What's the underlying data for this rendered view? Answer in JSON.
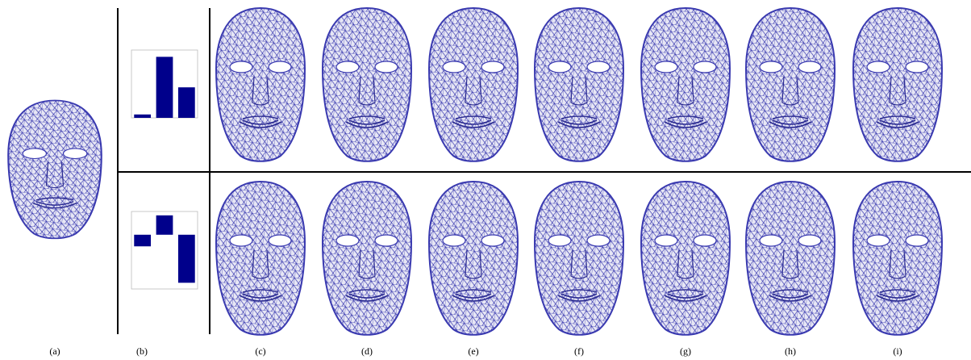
{
  "labels": [
    "(a)",
    "(b)",
    "(c)",
    "(d)",
    "(e)",
    "(f)",
    "(g)",
    "(h)",
    "(i)"
  ],
  "bar_plots": [
    {
      "values": [
        0.05,
        0.9,
        0.45
      ],
      "ylim": [
        0,
        1
      ],
      "color": "#00008b"
    },
    {
      "values": [
        -0.15,
        0.25,
        -0.62
      ],
      "ylim": [
        -0.7,
        0.3
      ],
      "color": "#00008b"
    }
  ]
}
